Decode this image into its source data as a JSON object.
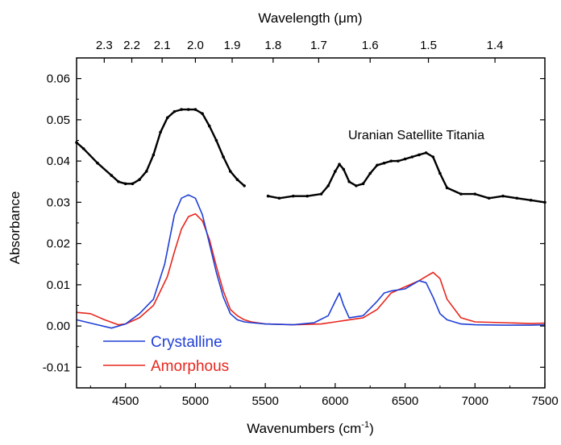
{
  "chart_data": {
    "type": "line",
    "title": "",
    "xlabel": "Wavenumbers (cm",
    "xlabel_sup": "-1",
    "xlabel_suffix": ")",
    "ylabel": "Absorbance",
    "top_xlabel": "Wavelength (μm)",
    "xlim": [
      4150,
      7500
    ],
    "ylim": [
      -0.015,
      0.065
    ],
    "x_ticks": [
      4500,
      5000,
      5500,
      6000,
      6500,
      7000,
      7500
    ],
    "y_ticks": [
      -0.01,
      0.0,
      0.01,
      0.02,
      0.03,
      0.04,
      0.05,
      0.06
    ],
    "y_tick_labels": [
      "-0.01",
      "0.00",
      "0.01",
      "0.02",
      "0.03",
      "0.04",
      "0.05",
      "0.06"
    ],
    "top_ticks": [
      {
        "label": "2.3",
        "wavenumber": 4348
      },
      {
        "label": "2.2",
        "wavenumber": 4545
      },
      {
        "label": "2.1",
        "wavenumber": 4762
      },
      {
        "label": "2.0",
        "wavenumber": 5000
      },
      {
        "label": "1.9",
        "wavenumber": 5263
      },
      {
        "label": "1.8",
        "wavenumber": 5556
      },
      {
        "label": "1.7",
        "wavenumber": 5882
      },
      {
        "label": "1.6",
        "wavenumber": 6250
      },
      {
        "label": "1.5",
        "wavenumber": 6667
      },
      {
        "label": "1.4",
        "wavenumber": 7143
      }
    ],
    "annotation": "Uranian Satellite Titania",
    "legend_position": "bottom-left",
    "series": [
      {
        "name": "Crystalline",
        "color": "#1f3fd6",
        "x": [
          4150,
          4300,
          4400,
          4500,
          4600,
          4700,
          4780,
          4850,
          4900,
          4950,
          5000,
          5050,
          5100,
          5150,
          5200,
          5250,
          5300,
          5350,
          5400,
          5500,
          5700,
          5850,
          5950,
          6000,
          6030,
          6060,
          6100,
          6200,
          6300,
          6350,
          6400,
          6500,
          6600,
          6650,
          6700,
          6750,
          6800,
          6900,
          7000,
          7200,
          7400,
          7500
        ],
        "y": [
          0.0015,
          0.0003,
          -0.0005,
          0.0005,
          0.003,
          0.0065,
          0.015,
          0.027,
          0.031,
          0.0318,
          0.031,
          0.027,
          0.02,
          0.013,
          0.007,
          0.003,
          0.0015,
          0.001,
          0.0008,
          0.0005,
          0.0003,
          0.0008,
          0.0025,
          0.006,
          0.008,
          0.005,
          0.002,
          0.0025,
          0.006,
          0.008,
          0.0085,
          0.009,
          0.011,
          0.0105,
          0.007,
          0.003,
          0.0015,
          0.0005,
          0.0003,
          0.0002,
          0.0002,
          0.0003
        ]
      },
      {
        "name": "Amorphous",
        "color": "#e8261e",
        "x": [
          4150,
          4250,
          4350,
          4450,
          4500,
          4600,
          4700,
          4800,
          4850,
          4900,
          4950,
          5000,
          5050,
          5100,
          5150,
          5200,
          5250,
          5300,
          5350,
          5400,
          5500,
          5700,
          5900,
          6000,
          6100,
          6200,
          6300,
          6350,
          6400,
          6500,
          6600,
          6650,
          6700,
          6750,
          6800,
          6900,
          7000,
          7200,
          7400,
          7500
        ],
        "y": [
          0.0033,
          0.003,
          0.0015,
          0.0003,
          0.0005,
          0.002,
          0.005,
          0.012,
          0.018,
          0.0235,
          0.0265,
          0.0272,
          0.0255,
          0.021,
          0.0145,
          0.0085,
          0.004,
          0.0025,
          0.0015,
          0.001,
          0.0005,
          0.0003,
          0.0005,
          0.001,
          0.0015,
          0.002,
          0.004,
          0.006,
          0.008,
          0.0095,
          0.011,
          0.012,
          0.013,
          0.0115,
          0.0065,
          0.002,
          0.001,
          0.0008,
          0.0006,
          0.0007
        ]
      },
      {
        "name": "",
        "color": "#000000",
        "segments": [
          {
            "x": [
              4150,
              4200,
              4300,
              4400,
              4450,
              4500,
              4550,
              4600,
              4650,
              4700,
              4750,
              4800,
              4850,
              4900,
              4950,
              5000,
              5050,
              5100,
              5150,
              5200,
              5250,
              5300,
              5350
            ],
            "y": [
              0.0445,
              0.043,
              0.0395,
              0.0365,
              0.035,
              0.0345,
              0.0345,
              0.0355,
              0.0375,
              0.0415,
              0.047,
              0.0505,
              0.052,
              0.0525,
              0.0525,
              0.0525,
              0.0515,
              0.0485,
              0.045,
              0.041,
              0.0375,
              0.0355,
              0.034
            ]
          },
          {
            "x": [
              5520,
              5600,
              5700,
              5800,
              5900,
              5950,
              6000,
              6030,
              6060,
              6100,
              6150,
              6200,
              6250,
              6300,
              6350,
              6400,
              6450,
              6500,
              6550,
              6600,
              6650,
              6700,
              6750,
              6800,
              6900,
              7000,
              7100,
              7200,
              7300,
              7400,
              7500
            ],
            "y": [
              0.0315,
              0.031,
              0.0315,
              0.0315,
              0.032,
              0.034,
              0.0375,
              0.0392,
              0.038,
              0.035,
              0.034,
              0.0345,
              0.037,
              0.039,
              0.0395,
              0.04,
              0.04,
              0.0405,
              0.041,
              0.0415,
              0.042,
              0.041,
              0.037,
              0.0335,
              0.032,
              0.032,
              0.031,
              0.0315,
              0.031,
              0.0305,
              0.03
            ]
          }
        ]
      }
    ]
  }
}
